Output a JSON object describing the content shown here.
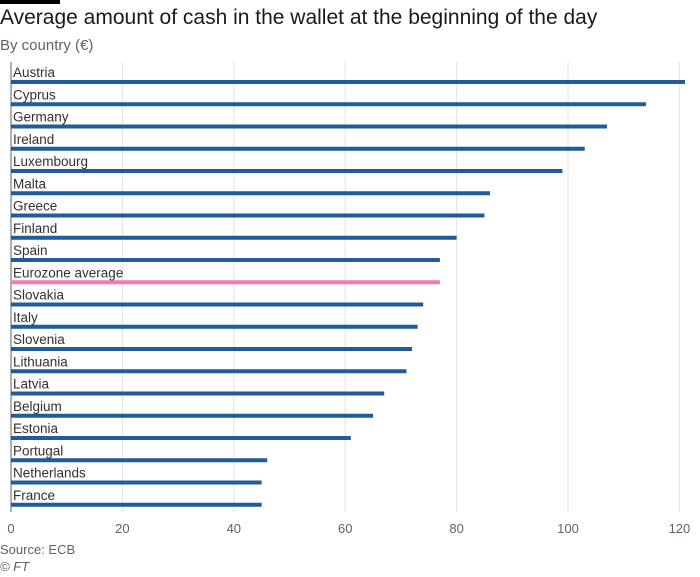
{
  "header": {
    "title": "Average amount of cash in the wallet at the beginning of the day",
    "subtitle": "By country (€)"
  },
  "footer": {
    "source": "Source: ECB",
    "credit": "© FT"
  },
  "colors": {
    "bar": "#1f5c99",
    "highlight": "#f27cb1",
    "grid": "#e6e1dc",
    "axis": "#66605c"
  },
  "chart_data": {
    "type": "bar",
    "orientation": "horizontal",
    "title": "Average amount of cash in the wallet at the beginning of the day",
    "subtitle": "By country (€)",
    "xlabel": "",
    "ylabel": "",
    "xlim": [
      0,
      121
    ],
    "xticks": [
      0,
      20,
      40,
      60,
      80,
      100,
      120
    ],
    "grid": true,
    "legend": "none",
    "highlight_category": "Eurozone average",
    "categories": [
      "Austria",
      "Cyprus",
      "Germany",
      "Ireland",
      "Luxembourg",
      "Malta",
      "Greece",
      "Finland",
      "Spain",
      "Eurozone average",
      "Slovakia",
      "Italy",
      "Slovenia",
      "Lithuania",
      "Latvia",
      "Belgium",
      "Estonia",
      "Portugal",
      "Netherlands",
      "France"
    ],
    "values": [
      121,
      114,
      107,
      103,
      99,
      86,
      85,
      80,
      77,
      77,
      74,
      73,
      72,
      71,
      67,
      65,
      61,
      46,
      45,
      45
    ]
  }
}
